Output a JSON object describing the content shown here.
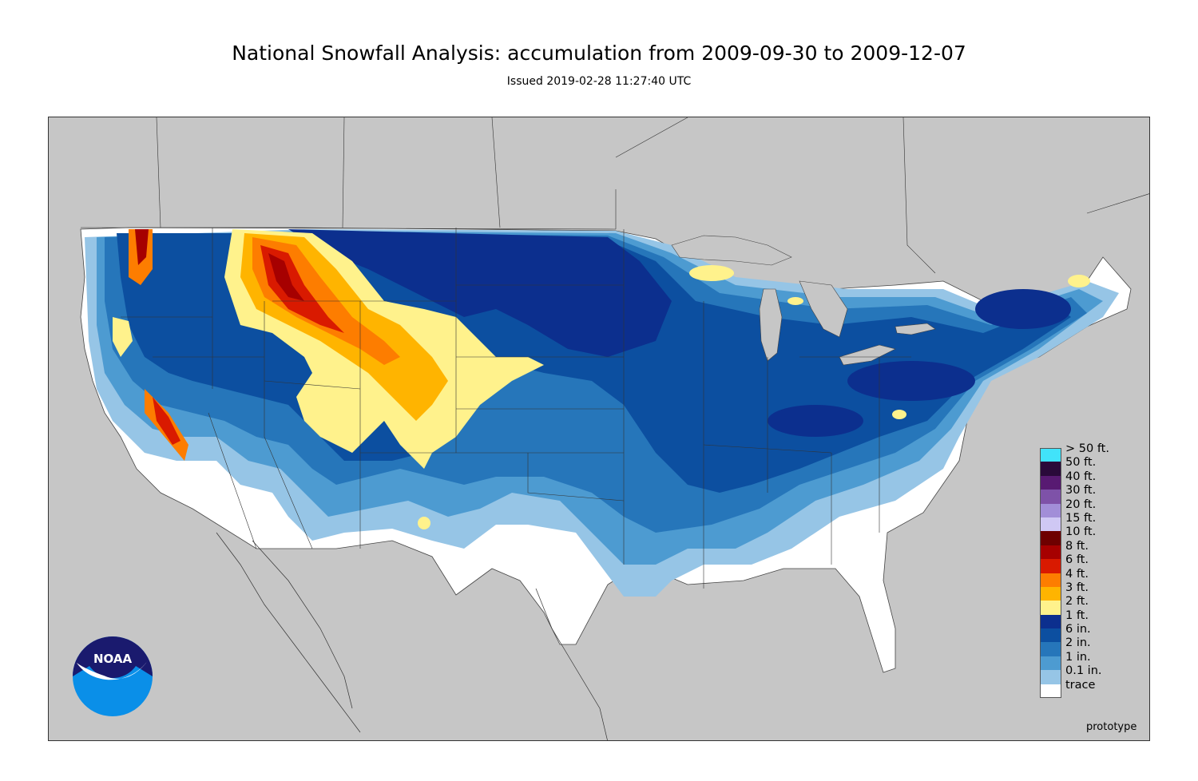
{
  "header": {
    "title": "National Snowfall Analysis: accumulation from 2009-09-30 to 2009-12-07",
    "subtitle": "Issued 2019-02-28 11:27:40 UTC"
  },
  "footer": {
    "prototype_label": "prototype"
  },
  "logo": {
    "text": "NOAA",
    "colors": {
      "dark": "#1a1a6e",
      "light": "#0a8fe8"
    }
  },
  "map": {
    "land_color": "#c6c6c6",
    "border_color": "#333333"
  },
  "legend": {
    "items": [
      {
        "label": "> 50 ft.",
        "color": "#41e3fa"
      },
      {
        "label": "50 ft.",
        "color": "#2a0a3a"
      },
      {
        "label": "40 ft.",
        "color": "#581a72"
      },
      {
        "label": "30 ft.",
        "color": "#7e52a8"
      },
      {
        "label": "20 ft.",
        "color": "#a28ed8"
      },
      {
        "label": "15 ft.",
        "color": "#cfc8f4"
      },
      {
        "label": "10 ft.",
        "color": "#6e0000"
      },
      {
        "label": "8 ft.",
        "color": "#a60000"
      },
      {
        "label": "6 ft.",
        "color": "#d91a00"
      },
      {
        "label": "4 ft.",
        "color": "#fd7d00"
      },
      {
        "label": "3 ft.",
        "color": "#ffb400"
      },
      {
        "label": "2 ft.",
        "color": "#fff28c"
      },
      {
        "label": "1 ft.",
        "color": "#0c2f8e"
      },
      {
        "label": "6 in.",
        "color": "#0c4fa0"
      },
      {
        "label": "2 in.",
        "color": "#2676ba"
      },
      {
        "label": "1 in.",
        "color": "#4d9bd1"
      },
      {
        "label": "0.1 in.",
        "color": "#96c5e6"
      },
      {
        "label": "trace",
        "color": "#ffffff"
      }
    ]
  }
}
